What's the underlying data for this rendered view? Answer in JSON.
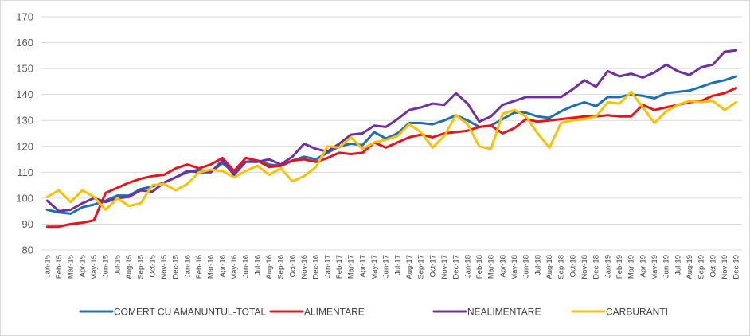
{
  "chart_data": {
    "type": "line",
    "xlabel": "",
    "ylabel": "",
    "ylim": [
      80,
      170
    ],
    "yticks": [
      "80",
      "90",
      "100",
      "110",
      "120",
      "130",
      "140",
      "150",
      "160",
      "170"
    ],
    "grid": true,
    "legend_position": "bottom",
    "categories": [
      "Jan-15",
      "Feb-15",
      "Mar-15",
      "Apr-15",
      "May-15",
      "Jun-15",
      "Jul-15",
      "Aug-15",
      "Sep-15",
      "Oct-15",
      "Nov-15",
      "Dec-15",
      "Jan-16",
      "Feb-16",
      "Mar-16",
      "Apr-16",
      "May-16",
      "Jun-16",
      "Jul-16",
      "Aug-16",
      "Sep-16",
      "Oct-16",
      "Nov-16",
      "Dec-16",
      "Jan-17",
      "Feb-17",
      "Mar-17",
      "Apr-17",
      "May-17",
      "Jun-17",
      "Jul-17",
      "Aug-17",
      "Sep-17",
      "Oct-17",
      "Nov-17",
      "Dec-17",
      "Jan-18",
      "Feb-18",
      "Mar-18",
      "Apr-18",
      "May-18",
      "Jun-18",
      "Jul-18",
      "Aug-18",
      "Sep-18",
      "Oct-18",
      "Nov-18",
      "Dec-18",
      "Jan-19",
      "Feb-19",
      "Mar-19",
      "Apr-19",
      "May-19",
      "Jun-19",
      "Jul-19",
      "Aug-19",
      "Sep-19",
      "Oct-19",
      "Nov-19",
      "Dec-19"
    ],
    "series": [
      {
        "name": "COMERT CU AMANUNTUL-TOTAL",
        "color": "#1f6fb4",
        "values": [
          95.5,
          94.5,
          94.0,
          96.5,
          97.5,
          99.0,
          101.0,
          101.0,
          103.5,
          104.5,
          106.0,
          108.0,
          110.0,
          111.0,
          110.0,
          113.5,
          110.0,
          114.0,
          114.5,
          113.0,
          112.5,
          114.5,
          116.0,
          115.0,
          117.5,
          120.0,
          121.0,
          120.5,
          125.5,
          123.0,
          125.0,
          129.0,
          129.0,
          128.5,
          130.0,
          132.0,
          130.0,
          127.5,
          128.0,
          130.5,
          133.0,
          133.0,
          131.5,
          131.0,
          133.5,
          135.5,
          137.0,
          135.5,
          139.0,
          139.0,
          140.0,
          139.5,
          138.5,
          140.5,
          141.0,
          141.5,
          143.0,
          144.5,
          145.5,
          147.0
        ]
      },
      {
        "name": "ALIMENTARE",
        "color": "#e8131b",
        "values": [
          89.0,
          89.0,
          90.0,
          90.5,
          91.5,
          102.0,
          104.0,
          106.0,
          107.5,
          108.5,
          109.0,
          111.5,
          113.0,
          111.5,
          113.0,
          115.5,
          110.5,
          115.5,
          114.5,
          112.0,
          112.5,
          114.5,
          115.0,
          114.0,
          115.5,
          117.5,
          117.0,
          117.5,
          121.5,
          119.5,
          121.5,
          123.5,
          124.5,
          123.5,
          125.0,
          125.5,
          126.0,
          127.5,
          128.0,
          125.0,
          127.0,
          130.5,
          129.5,
          130.0,
          130.5,
          131.0,
          131.5,
          131.5,
          132.0,
          131.5,
          131.5,
          136.0,
          134.0,
          135.0,
          136.0,
          137.0,
          137.5,
          139.5,
          140.5,
          142.5
        ]
      },
      {
        "name": "NEALIMENTARE",
        "color": "#7030a0",
        "values": [
          99.0,
          95.0,
          95.5,
          98.0,
          100.0,
          98.5,
          100.0,
          100.5,
          103.0,
          102.5,
          106.0,
          108.0,
          110.5,
          110.0,
          110.0,
          114.5,
          109.0,
          114.0,
          114.0,
          115.0,
          113.0,
          116.0,
          121.0,
          119.0,
          118.0,
          121.0,
          124.5,
          125.0,
          128.0,
          127.5,
          130.5,
          134.0,
          135.0,
          136.5,
          136.0,
          140.5,
          136.5,
          129.5,
          131.5,
          136.0,
          137.5,
          139.0,
          139.0,
          139.0,
          139.0,
          142.0,
          145.5,
          143.0,
          149.0,
          147.0,
          148.0,
          146.5,
          148.5,
          151.5,
          149.0,
          147.5,
          150.5,
          151.5,
          156.5,
          157.0
        ]
      },
      {
        "name": "CARBURANTI",
        "color": "#ffc000",
        "values": [
          100.5,
          103.0,
          98.5,
          103.0,
          100.5,
          95.5,
          100.0,
          97.0,
          98.0,
          105.0,
          105.5,
          103.0,
          105.5,
          110.0,
          111.0,
          110.5,
          108.0,
          110.5,
          112.5,
          109.0,
          111.5,
          106.5,
          108.5,
          112.0,
          120.0,
          119.5,
          123.5,
          119.0,
          121.5,
          122.5,
          124.0,
          128.5,
          125.5,
          119.5,
          124.0,
          132.0,
          128.5,
          120.0,
          119.0,
          132.5,
          134.0,
          131.5,
          125.0,
          119.5,
          129.0,
          130.0,
          130.5,
          131.5,
          137.0,
          136.5,
          141.0,
          135.0,
          129.0,
          133.5,
          136.0,
          137.5,
          137.0,
          137.5,
          134.0,
          137.0
        ]
      }
    ]
  }
}
